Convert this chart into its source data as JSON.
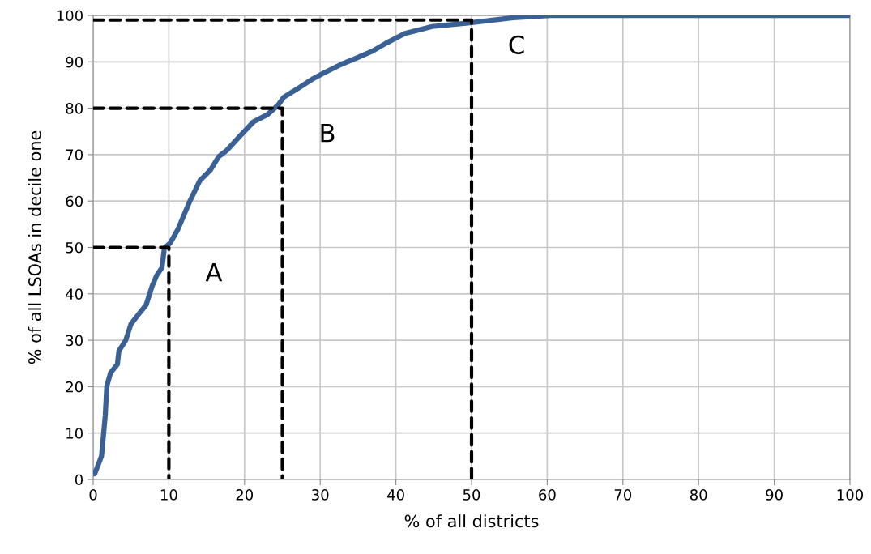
{
  "chart_data": {
    "type": "line",
    "xlabel": "% of all districts",
    "ylabel": "% of all LSOAs in decile one",
    "xlim": [
      0,
      100
    ],
    "ylim": [
      0,
      100
    ],
    "xticks": [
      0,
      10,
      20,
      30,
      40,
      50,
      60,
      70,
      80,
      90,
      100
    ],
    "yticks": [
      0,
      10,
      20,
      30,
      40,
      50,
      60,
      70,
      80,
      90,
      100
    ],
    "grid": true,
    "marker": "none",
    "series": [
      {
        "color": "#3a6195",
        "line_style": "solid",
        "x": [
          0.2,
          1.1,
          1.6,
          1.8,
          2.3,
          3.2,
          3.4,
          4.3,
          5.0,
          6.1,
          7.0,
          7.8,
          8.4,
          9.1,
          9.4,
          10.2,
          11.2,
          12.7,
          14.1,
          15.5,
          16.6,
          17.7,
          19.5,
          21.2,
          23.0,
          24.4,
          25.2,
          26.9,
          29.1,
          30.5,
          32.7,
          34.8,
          36.9,
          38.7,
          41.2,
          44.8,
          49.8,
          55.5,
          60.8,
          70,
          80,
          90,
          100
        ],
        "values": [
          1.2,
          5,
          13.8,
          20.1,
          23,
          24.8,
          27.7,
          30,
          33.5,
          35.8,
          37.6,
          41.7,
          44,
          45.7,
          49.8,
          51,
          53.9,
          59.7,
          64.4,
          66.7,
          69.6,
          71,
          74.2,
          77.1,
          78.6,
          80.6,
          82.4,
          84.1,
          86.4,
          87.6,
          89.4,
          90.8,
          92.3,
          94.0,
          96.1,
          97.6,
          98.4,
          99.5,
          100,
          100,
          100,
          100,
          100
        ]
      },
      {
        "color": "#000000",
        "line_style": "dashed",
        "x": [
          0,
          10,
          10
        ],
        "values": [
          50,
          50,
          0
        ]
      },
      {
        "color": "#000000",
        "line_style": "dashed",
        "x": [
          0,
          25,
          25
        ],
        "values": [
          80,
          80,
          0
        ]
      },
      {
        "color": "#000000",
        "line_style": "dashed",
        "x": [
          0,
          50,
          50
        ],
        "values": [
          99,
          99,
          0
        ]
      }
    ],
    "annotations": [
      {
        "text": "A",
        "x": 10,
        "y": 50
      },
      {
        "text": "B",
        "x": 25,
        "y": 80
      },
      {
        "text": "C",
        "x": 50,
        "y": 99
      }
    ]
  }
}
